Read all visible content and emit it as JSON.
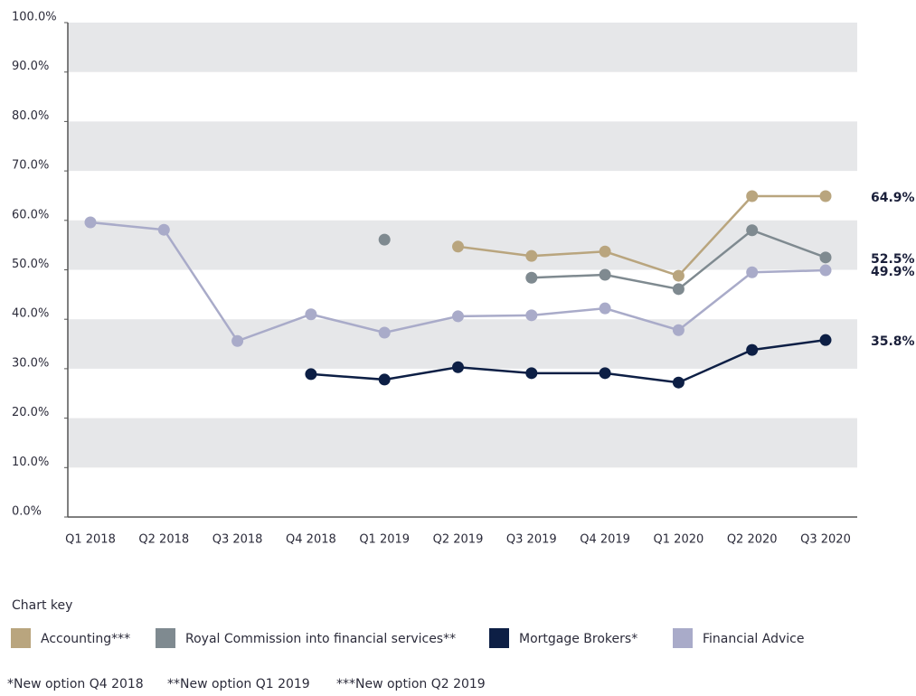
{
  "chart_data": {
    "type": "line",
    "categories": [
      "Q1 2018",
      "Q2 2018",
      "Q3 2018",
      "Q4 2018",
      "Q1 2019",
      "Q2 2019",
      "Q3 2019",
      "Q4 2019",
      "Q1 2020",
      "Q2 2020",
      "Q3 2020"
    ],
    "series": [
      {
        "name": "Accounting***",
        "color": "#b9a57e",
        "values": [
          null,
          null,
          null,
          null,
          null,
          54.7,
          52.8,
          53.7,
          48.8,
          64.9,
          64.9
        ],
        "value_labels": [
          null,
          null,
          null,
          null,
          null,
          null,
          null,
          null,
          null,
          null,
          "64.9%"
        ]
      },
      {
        "name": "Royal Commission into financial services**",
        "color": "#7f8a90",
        "values": [
          null,
          null,
          null,
          null,
          56.1,
          null,
          48.4,
          49.0,
          46.1,
          58.0,
          52.5
        ],
        "value_labels": [
          null,
          null,
          null,
          null,
          null,
          null,
          null,
          null,
          null,
          null,
          "52.5%"
        ]
      },
      {
        "name": "Mortgage Brokers*",
        "color": "#0d1f45",
        "values": [
          null,
          null,
          null,
          28.9,
          27.8,
          30.3,
          29.1,
          29.1,
          27.2,
          33.8,
          35.8
        ],
        "value_labels": [
          null,
          null,
          null,
          null,
          null,
          null,
          null,
          null,
          null,
          null,
          "35.8%"
        ]
      },
      {
        "name": "Financial Advice",
        "color": "#a9abc9",
        "values": [
          59.6,
          58.1,
          35.6,
          41.0,
          37.3,
          40.6,
          40.8,
          42.2,
          37.8,
          49.5,
          49.9
        ],
        "value_labels": [
          null,
          null,
          null,
          null,
          null,
          null,
          null,
          null,
          null,
          null,
          "49.9%"
        ]
      }
    ],
    "ylim": [
      0,
      100
    ],
    "yticks": [
      {
        "value": 0,
        "label": "0.0%"
      },
      {
        "value": 10,
        "label": "10.0%"
      },
      {
        "value": 20,
        "label": "20.0%"
      },
      {
        "value": 30,
        "label": "30.0%"
      },
      {
        "value": 40,
        "label": "40.0%"
      },
      {
        "value": 50,
        "label": "50.0%"
      },
      {
        "value": 60,
        "label": "60.0%"
      },
      {
        "value": 70,
        "label": "70.0%"
      },
      {
        "value": 80,
        "label": "80.0%"
      },
      {
        "value": 90,
        "label": "90.0%"
      },
      {
        "value": 100,
        "label": "100.0%"
      }
    ],
    "banded_grid": true,
    "legend_title": "Chart key",
    "footnotes": [
      "*New option Q4 2018",
      "**New option Q1 2019",
      "***New option Q2 2019"
    ]
  }
}
